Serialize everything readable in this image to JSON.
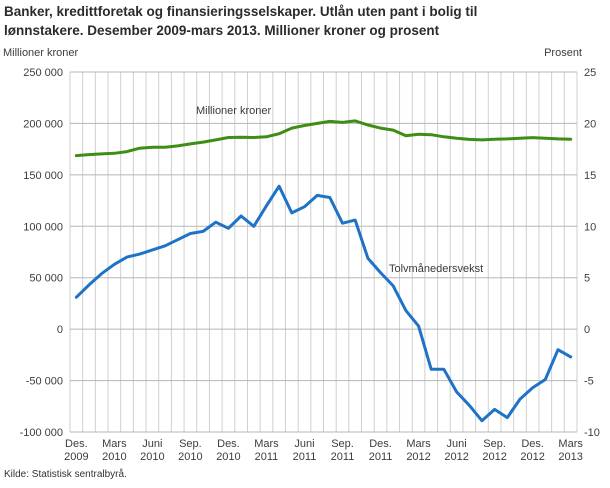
{
  "title": "Banker, kredittforetak og finansieringsselskaper. Utlån uten pant i bolig til\nlønnstakere. Desember 2009-mars 2013. Millioner kroner og prosent",
  "axes": {
    "left_unit": "Millioner kroner",
    "right_unit": "Prosent"
  },
  "footer": {
    "source": "Kilde: Statistisk sentralbyrå."
  },
  "colors": {
    "green_line": "#3e8e16",
    "blue_line": "#1e72c8",
    "vertical_grid": "#cfcfcf",
    "horizontal_grid": "#b7b7b7",
    "tick_text": "#3d3d3d"
  },
  "chart_data": {
    "type": "line",
    "frequency": "monthly",
    "period": "Desember 2009 - mars 2013",
    "grid": {
      "vertical_monthly": true,
      "horizontal": true,
      "vcolor": "#cfcfcf",
      "hcolor": "#b7b7b7"
    },
    "left_axis": {
      "title": "Millioner kroner",
      "min": -100000,
      "max": 250000,
      "tick_step": 50000,
      "tick_labels": [
        "250 000",
        "200 000",
        "150 000",
        "100 000",
        "50 000",
        "0",
        "-50 000",
        "-100 000"
      ]
    },
    "right_axis": {
      "title": "Prosent",
      "min": -10,
      "max": 25,
      "tick_step": 5,
      "tick_labels": [
        "25",
        "20",
        "15",
        "10",
        "5",
        "0",
        "-5",
        "-10"
      ]
    },
    "x_ticks": [
      {
        "month_index": 0,
        "line1": "Des.",
        "line2": "2009"
      },
      {
        "month_index": 3,
        "line1": "Mars",
        "line2": "2010"
      },
      {
        "month_index": 6,
        "line1": "Juni",
        "line2": "2010"
      },
      {
        "month_index": 9,
        "line1": "Sep.",
        "line2": "2010"
      },
      {
        "month_index": 12,
        "line1": "Des.",
        "line2": "2010"
      },
      {
        "month_index": 15,
        "line1": "Mars",
        "line2": "2011"
      },
      {
        "month_index": 18,
        "line1": "Juni",
        "line2": "2011"
      },
      {
        "month_index": 21,
        "line1": "Sep.",
        "line2": "2011"
      },
      {
        "month_index": 24,
        "line1": "Des.",
        "line2": "2011"
      },
      {
        "month_index": 27,
        "line1": "Mars",
        "line2": "2012"
      },
      {
        "month_index": 30,
        "line1": "Juni",
        "line2": "2012"
      },
      {
        "month_index": 33,
        "line1": "Sep.",
        "line2": "2012"
      },
      {
        "month_index": 36,
        "line1": "Des.",
        "line2": "2012"
      },
      {
        "month_index": 39,
        "line1": "Mars",
        "line2": "2013"
      }
    ],
    "series": [
      {
        "name": "Millioner kroner",
        "axis": "left",
        "color": "#3e8e16",
        "values": [
          168700,
          169700,
          170400,
          171000,
          172600,
          175900,
          176900,
          176900,
          178200,
          180100,
          181800,
          184000,
          186300,
          186600,
          186300,
          187000,
          190000,
          195500,
          198000,
          200000,
          202000,
          201000,
          202500,
          198500,
          195500,
          193500,
          188000,
          189500,
          189000,
          187000,
          185500,
          184500,
          184000,
          184700,
          185000,
          185600,
          186200,
          185500,
          185000,
          184700
        ]
      },
      {
        "name": "Tolvmånedersvekst",
        "axis": "right",
        "color": "#1e72c8",
        "values": [
          3.1,
          4.3,
          5.4,
          6.3,
          7.0,
          7.3,
          7.7,
          8.1,
          8.7,
          9.3,
          9.5,
          10.4,
          9.8,
          11.0,
          10.0,
          12.0,
          13.9,
          11.3,
          11.9,
          13.0,
          12.8,
          10.3,
          10.6,
          6.9,
          5.5,
          4.2,
          1.8,
          0.3,
          -3.9,
          -3.9,
          -6.1,
          -7.4,
          -8.9,
          -7.8,
          -8.6,
          -6.8,
          -5.7,
          -4.9,
          -2.0,
          -2.7
        ]
      }
    ]
  }
}
